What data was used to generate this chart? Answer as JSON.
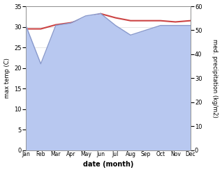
{
  "months": [
    "Jan",
    "Feb",
    "Mar",
    "Apr",
    "May",
    "Jun",
    "Jul",
    "Aug",
    "Sep",
    "Oct",
    "Nov",
    "Dec"
  ],
  "max_temp": [
    29.5,
    29.5,
    30.5,
    31.0,
    32.0,
    33.2,
    32.2,
    31.5,
    31.5,
    31.5,
    31.2,
    31.5
  ],
  "precipitation": [
    52,
    36,
    52,
    53,
    56,
    57,
    52,
    48,
    50,
    52,
    52,
    52
  ],
  "temp_color": "#cc4444",
  "precip_fill_color": "#b8c8f0",
  "precip_line_color": "#8899cc",
  "temp_ylim": [
    0,
    35
  ],
  "precip_ylim": [
    0,
    60
  ],
  "temp_yticks": [
    0,
    5,
    10,
    15,
    20,
    25,
    30,
    35
  ],
  "precip_yticks": [
    0,
    10,
    20,
    30,
    40,
    50,
    60
  ],
  "xlabel": "date (month)",
  "ylabel_left": "max temp (C)",
  "ylabel_right": "med. precipitation (kg/m2)",
  "bg_color": "#ffffff"
}
